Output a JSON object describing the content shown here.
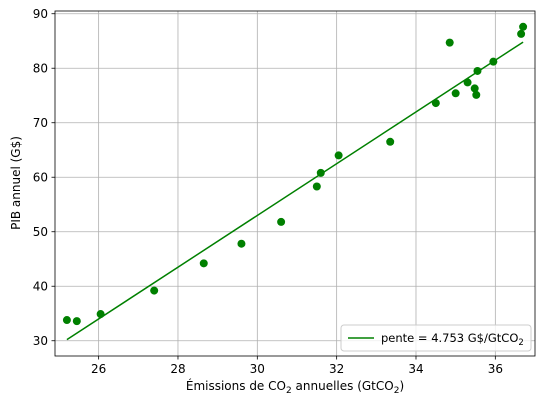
{
  "chart_data": {
    "type": "scatter",
    "xlabel_parts": [
      "Émissions de CO",
      "2",
      " annuelles (GtCO",
      "2",
      ")"
    ],
    "ylabel": "PIB annuel (G$)",
    "xlim": [
      24.9,
      37.0
    ],
    "ylim": [
      27.2,
      90.5
    ],
    "xticks": [
      26,
      28,
      30,
      32,
      34,
      36
    ],
    "yticks": [
      30,
      40,
      50,
      60,
      70,
      80,
      90
    ],
    "grid": true,
    "legend_position": "bottom-right",
    "colors": {
      "points": "#008000",
      "line": "#008000",
      "grid": "#b0b0b0"
    },
    "points": [
      {
        "x": 25.2,
        "y": 33.8
      },
      {
        "x": 25.45,
        "y": 33.6
      },
      {
        "x": 26.05,
        "y": 34.9
      },
      {
        "x": 27.4,
        "y": 39.2
      },
      {
        "x": 28.65,
        "y": 44.2
      },
      {
        "x": 29.6,
        "y": 47.8
      },
      {
        "x": 30.6,
        "y": 51.8
      },
      {
        "x": 31.5,
        "y": 58.3
      },
      {
        "x": 31.6,
        "y": 60.8
      },
      {
        "x": 32.05,
        "y": 64.0
      },
      {
        "x": 33.35,
        "y": 66.5
      },
      {
        "x": 34.5,
        "y": 73.6
      },
      {
        "x": 34.85,
        "y": 84.7
      },
      {
        "x": 35.0,
        "y": 75.4
      },
      {
        "x": 35.3,
        "y": 77.4
      },
      {
        "x": 35.48,
        "y": 76.3
      },
      {
        "x": 35.52,
        "y": 75.1
      },
      {
        "x": 35.55,
        "y": 79.5
      },
      {
        "x": 35.95,
        "y": 81.2
      },
      {
        "x": 36.65,
        "y": 86.3
      },
      {
        "x": 36.7,
        "y": 87.6
      }
    ],
    "regression": {
      "slope": 4.753,
      "x": [
        25.2,
        36.7
      ],
      "y": [
        30.2,
        84.8
      ]
    },
    "legend": {
      "text_parts": [
        "pente = 4.753 G$/GtCO",
        "2"
      ]
    }
  }
}
